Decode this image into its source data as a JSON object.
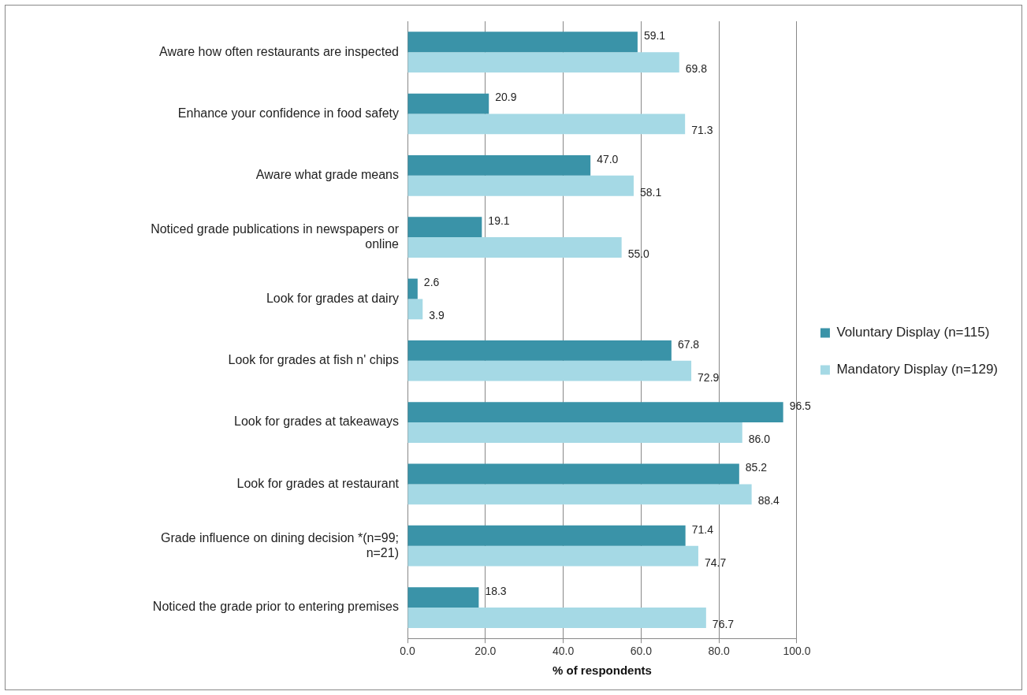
{
  "chart_data": {
    "type": "bar",
    "orientation": "horizontal",
    "xlabel": "% of respondents",
    "categories": [
      "Aware how often restaurants are inspected",
      "Enhance your confidence in food safety",
      "Aware what grade means",
      "Noticed grade publications in newspapers or online",
      "Look for grades at dairy",
      "Look for grades at fish n' chips",
      "Look for grades at takeaways",
      "Look for grades at restaurant",
      "Grade influence on dining decision *(n=99; n=21)",
      "Noticed the grade prior to entering premises"
    ],
    "series": [
      {
        "name": "Voluntary Display (n=115)",
        "color": "#3a93a8",
        "values": [
          59.1,
          20.9,
          47.0,
          19.1,
          2.6,
          67.8,
          96.5,
          85.2,
          71.4,
          18.3
        ],
        "value_labels": [
          "59.1",
          "20.9",
          "47.0",
          "19.1",
          "2.6",
          "67.8",
          "96.5",
          "85.2",
          "71.4",
          "18.3"
        ]
      },
      {
        "name": "Mandatory Display (n=129)",
        "color": "#a5d9e5",
        "values": [
          69.8,
          71.3,
          58.1,
          55.0,
          3.9,
          72.9,
          86.0,
          88.4,
          74.7,
          76.7
        ],
        "value_labels": [
          "69.8",
          "71.3",
          "58.1",
          "55.0",
          "3.9",
          "72.9",
          "86.0",
          "88.4",
          "74.7",
          "76.7"
        ]
      }
    ],
    "xlim": [
      0,
      100
    ],
    "xticks": [
      {
        "value": 0,
        "label": "0.0"
      },
      {
        "value": 20,
        "label": "20.0"
      },
      {
        "value": 40,
        "label": "40.0"
      },
      {
        "value": 60,
        "label": "60.0"
      },
      {
        "value": 80,
        "label": "80.0"
      },
      {
        "value": 100,
        "label": "100.0"
      }
    ],
    "grid": "x",
    "legend": "right"
  }
}
